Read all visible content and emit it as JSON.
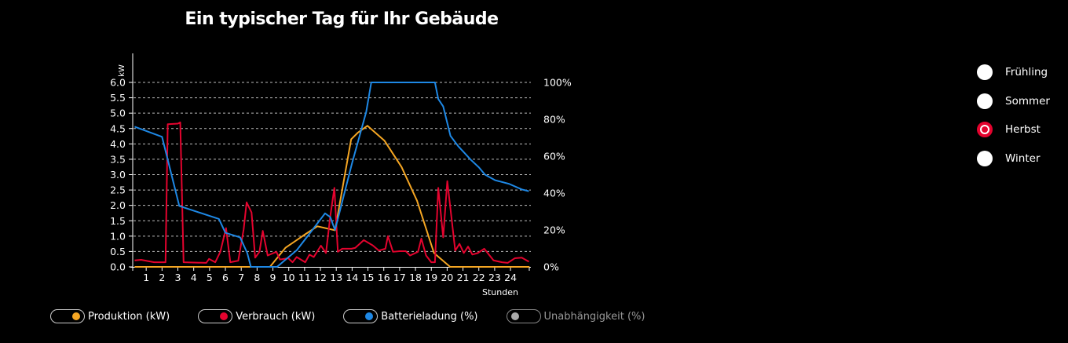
{
  "title": "Ein typischer Tag für Ihr Gebäude",
  "chart_data": {
    "type": "line",
    "title": "Ein typischer Tag für Ihr Gebäude",
    "xlabel": "Stunden",
    "ylabel": "kW",
    "xlim": [
      0,
      25.2
    ],
    "ylim": [
      0,
      6
    ],
    "y2lim": [
      0,
      100
    ],
    "xticks": [
      "1",
      "2",
      "3",
      "4",
      "5",
      "6",
      "7",
      "8",
      "9",
      "10",
      "11",
      "12",
      "13",
      "14",
      "15",
      "16",
      "17",
      "18",
      "19",
      "20",
      "21",
      "22",
      "23",
      "24"
    ],
    "yticks": [
      "0.0",
      "0.5",
      "1.0",
      "1.5",
      "2.0",
      "2.5",
      "3.0",
      "3.5",
      "4.0",
      "4.5",
      "5.0",
      "5.5",
      "6.0"
    ],
    "y2ticks": [
      "0%",
      "20%",
      "40%",
      "60%",
      "80%",
      "100%"
    ],
    "grid": "horizontal dashed",
    "series": [
      {
        "name": "Produktion (kW)",
        "axis": "left",
        "color": "#f5a623",
        "points": [
          [
            0.27,
            0
          ],
          [
            8.81,
            0
          ],
          [
            9.79,
            0.62
          ],
          [
            11.01,
            1.05
          ],
          [
            11.81,
            1.32
          ],
          [
            12.92,
            1.19
          ],
          [
            13.94,
            4.15
          ],
          [
            14.35,
            4.36
          ],
          [
            14.97,
            4.59
          ],
          [
            16.05,
            4.1
          ],
          [
            17.12,
            3.25
          ],
          [
            18.1,
            2.15
          ],
          [
            19.17,
            0.45
          ],
          [
            20.19,
            0
          ],
          [
            25.2,
            0
          ]
        ]
      },
      {
        "name": "Verbrauch (kW)",
        "axis": "left",
        "color": "#e4032e",
        "points": [
          [
            0.27,
            0.21
          ],
          [
            0.68,
            0.23
          ],
          [
            1.5,
            0.15
          ],
          [
            2.22,
            0.15
          ],
          [
            2.36,
            4.64
          ],
          [
            3.0,
            4.66
          ],
          [
            3.15,
            4.7
          ],
          [
            3.36,
            0.15
          ],
          [
            4.79,
            0.13
          ],
          [
            4.97,
            0.26
          ],
          [
            5.36,
            0.15
          ],
          [
            5.68,
            0.49
          ],
          [
            6.04,
            1.26
          ],
          [
            6.31,
            0.15
          ],
          [
            6.81,
            0.2
          ],
          [
            7.15,
            1.21
          ],
          [
            7.34,
            2.1
          ],
          [
            7.65,
            1.77
          ],
          [
            7.88,
            0.3
          ],
          [
            8.15,
            0.49
          ],
          [
            8.36,
            1.17
          ],
          [
            8.67,
            0.37
          ],
          [
            9.22,
            0.49
          ],
          [
            9.44,
            0.24
          ],
          [
            9.97,
            0.28
          ],
          [
            10.24,
            0.15
          ],
          [
            10.5,
            0.32
          ],
          [
            11.04,
            0.15
          ],
          [
            11.31,
            0.4
          ],
          [
            11.58,
            0.32
          ],
          [
            12.03,
            0.69
          ],
          [
            12.35,
            0.45
          ],
          [
            12.62,
            1.64
          ],
          [
            12.88,
            2.57
          ],
          [
            13.1,
            0.49
          ],
          [
            13.37,
            0.59
          ],
          [
            13.96,
            0.59
          ],
          [
            14.2,
            0.62
          ],
          [
            14.74,
            0.87
          ],
          [
            15.3,
            0.7
          ],
          [
            15.69,
            0.53
          ],
          [
            16.1,
            0.59
          ],
          [
            16.26,
            1.0
          ],
          [
            16.58,
            0.49
          ],
          [
            17.0,
            0.51
          ],
          [
            17.39,
            0.51
          ],
          [
            17.66,
            0.37
          ],
          [
            18.16,
            0.49
          ],
          [
            18.37,
            0.92
          ],
          [
            18.67,
            0.37
          ],
          [
            19.0,
            0.15
          ],
          [
            19.23,
            0.15
          ],
          [
            19.44,
            2.57
          ],
          [
            19.75,
            0.96
          ],
          [
            20.01,
            2.79
          ],
          [
            20.51,
            0.53
          ],
          [
            20.78,
            0.75
          ],
          [
            21.05,
            0.45
          ],
          [
            21.32,
            0.66
          ],
          [
            21.59,
            0.4
          ],
          [
            21.94,
            0.45
          ],
          [
            22.34,
            0.59
          ],
          [
            22.93,
            0.21
          ],
          [
            23.46,
            0.15
          ],
          [
            23.82,
            0.13
          ],
          [
            24.27,
            0.28
          ],
          [
            24.71,
            0.3
          ],
          [
            25.16,
            0.17
          ]
        ]
      },
      {
        "name": "Batterieladung (%)",
        "axis": "right",
        "color": "#1e88e5",
        "points": [
          [
            0.27,
            76
          ],
          [
            2.0,
            70.5
          ],
          [
            3.09,
            33
          ],
          [
            5.59,
            26
          ],
          [
            6.0,
            18.5
          ],
          [
            6.93,
            16
          ],
          [
            7.38,
            7.5
          ],
          [
            7.61,
            0
          ],
          [
            9.26,
            0
          ],
          [
            10.5,
            9
          ],
          [
            11.49,
            20
          ],
          [
            12.29,
            29
          ],
          [
            12.62,
            27
          ],
          [
            12.92,
            20
          ],
          [
            13.99,
            56
          ],
          [
            14.89,
            84
          ],
          [
            15.21,
            100
          ],
          [
            19.23,
            100
          ],
          [
            19.44,
            91
          ],
          [
            19.75,
            87
          ],
          [
            20.21,
            71
          ],
          [
            20.69,
            65.5
          ],
          [
            21.5,
            58
          ],
          [
            22.0,
            54
          ],
          [
            22.39,
            50
          ],
          [
            23.02,
            47
          ],
          [
            23.91,
            45
          ],
          [
            24.71,
            42
          ],
          [
            25.16,
            41
          ]
        ]
      },
      {
        "name": "Unabhängigkeit (%)",
        "axis": "right",
        "color": "#aaaaaa",
        "visible": false,
        "points": []
      }
    ]
  },
  "legend": [
    {
      "label": "Produktion (kW)",
      "color": "#f5a623",
      "on": true
    },
    {
      "label": "Verbrauch (kW)",
      "color": "#e4032e",
      "on": true
    },
    {
      "label": "Batterieladung (%)",
      "color": "#1e88e5",
      "on": true
    },
    {
      "label": "Unabhängigkeit (%)",
      "color": "#aaaaaa",
      "on": false
    }
  ],
  "seasons": [
    {
      "label": "Frühling",
      "selected": false
    },
    {
      "label": "Sommer",
      "selected": false
    },
    {
      "label": "Herbst",
      "selected": true
    },
    {
      "label": "Winter",
      "selected": false
    }
  ]
}
